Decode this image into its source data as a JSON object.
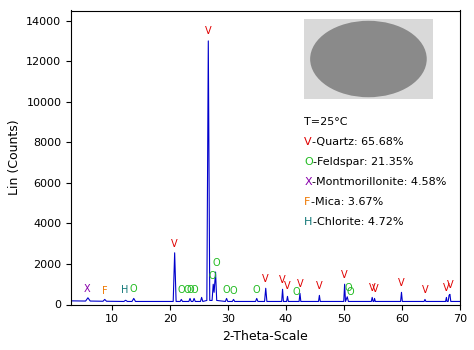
{
  "chart_data": {
    "type": "line",
    "x_label": "2-Theta-Scale",
    "y_label": "Lin (Counts)",
    "color": "#0000cc",
    "xlim": [
      3,
      70
    ],
    "xticks": [
      10,
      20,
      30,
      40,
      50,
      60,
      70
    ],
    "ylim": [
      0,
      14500
    ],
    "yticks": [
      0,
      2000,
      4000,
      6000,
      8000,
      10000,
      12000,
      14000
    ],
    "x": [
      3,
      5.5,
      5.9,
      6.3,
      8.5,
      8.8,
      9.1,
      12.1,
      12.4,
      12.7,
      13.5,
      13.8,
      14.1,
      20.6,
      20.85,
      21.1,
      21.8,
      22.0,
      22.2,
      23.3,
      23.5,
      23.7,
      24.0,
      24.2,
      24.4,
      25.3,
      25.5,
      25.7,
      26.4,
      26.65,
      26.9,
      27.3,
      27.5,
      27.65,
      27.9,
      28.1,
      29.6,
      29.8,
      30.0,
      30.8,
      31.0,
      31.2,
      34.8,
      35.0,
      35.2,
      36.35,
      36.55,
      36.75,
      39.3,
      39.45,
      39.6,
      40.15,
      40.3,
      40.45,
      42.3,
      42.45,
      42.6,
      45.65,
      45.8,
      45.95,
      50.0,
      50.15,
      50.3,
      50.6,
      50.8,
      54.75,
      54.9,
      55.05,
      55.2,
      55.3,
      55.45,
      59.8,
      59.95,
      60.1,
      63.85,
      64.0,
      64.15,
      67.55,
      67.7,
      67.8,
      68.0,
      68.15,
      68.3,
      68.45,
      70
    ],
    "values": [
      180,
      170,
      330,
      170,
      160,
      250,
      160,
      150,
      210,
      150,
      150,
      300,
      150,
      150,
      2550,
      150,
      150,
      250,
      150,
      150,
      300,
      150,
      150,
      300,
      150,
      150,
      350,
      150,
      200,
      13000,
      200,
      200,
      1000,
      600,
      1600,
      200,
      150,
      300,
      150,
      150,
      250,
      150,
      150,
      300,
      150,
      150,
      800,
      150,
      150,
      750,
      150,
      150,
      400,
      150,
      150,
      550,
      150,
      150,
      450,
      150,
      150,
      1000,
      150,
      380,
      150,
      150,
      350,
      150,
      150,
      300,
      150,
      150,
      600,
      150,
      150,
      250,
      150,
      150,
      350,
      150,
      150,
      450,
      500,
      150,
      150
    ],
    "annotations": [
      {
        "text": "T=25°C"
      }
    ],
    "phases": [
      {
        "symbol": "V",
        "text": "-Quartz: 65.68%",
        "color": "#e00000",
        "markers": [
          [
            20.85,
            2750
          ],
          [
            26.65,
            13250
          ],
          [
            36.55,
            1000
          ],
          [
            39.45,
            950
          ],
          [
            40.3,
            650
          ],
          [
            42.45,
            750
          ],
          [
            45.8,
            650
          ],
          [
            50.15,
            1200
          ],
          [
            54.9,
            550
          ],
          [
            55.5,
            500
          ],
          [
            59.95,
            800
          ],
          [
            64.0,
            450
          ],
          [
            67.6,
            550
          ],
          [
            68.4,
            700
          ]
        ]
      },
      {
        "symbol": "O",
        "text": "-Feldspar: 21.35%",
        "color": "#22bb22",
        "markers": [
          [
            13.8,
            500
          ],
          [
            22.0,
            450
          ],
          [
            23.0,
            450
          ],
          [
            23.6,
            450
          ],
          [
            24.2,
            450
          ],
          [
            27.4,
            1150
          ],
          [
            27.95,
            1800
          ],
          [
            29.8,
            450
          ],
          [
            31.0,
            400
          ],
          [
            35.0,
            450
          ],
          [
            41.8,
            350
          ],
          [
            50.7,
            550
          ],
          [
            51.2,
            350
          ]
        ]
      },
      {
        "symbol": "X",
        "text": "-Montmorillonite: 4.58%",
        "color": "#8800aa",
        "markers": [
          [
            5.8,
            500
          ]
        ]
      },
      {
        "symbol": "F",
        "text": "-Mica: 3.67%",
        "color": "#ee7700",
        "markers": [
          [
            8.8,
            400
          ]
        ]
      },
      {
        "symbol": "H",
        "text": "-Chlorite: 4.72%",
        "color": "#117777",
        "markers": [
          [
            12.2,
            450
          ]
        ]
      }
    ]
  }
}
